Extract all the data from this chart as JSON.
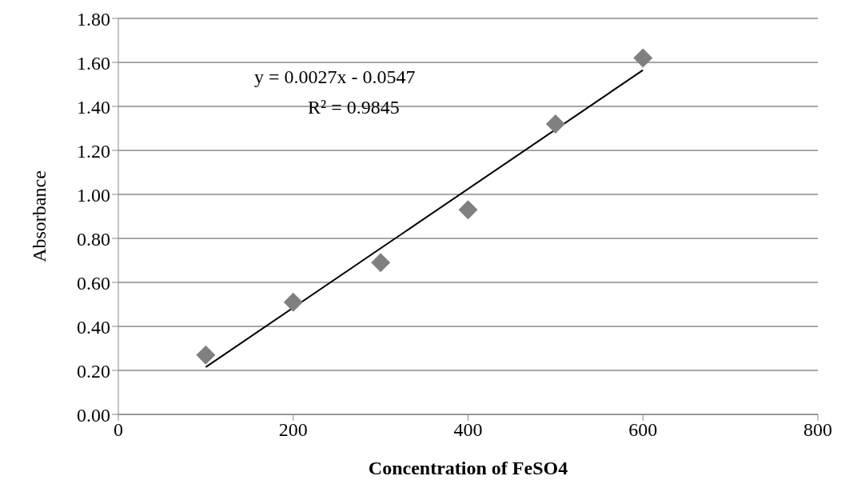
{
  "chart_data": {
    "type": "scatter",
    "xlabel": "Concentration of  FeSO4",
    "ylabel": "Absorbance",
    "x": [
      100,
      200,
      300,
      400,
      500,
      600
    ],
    "series": [
      {
        "color": "#808080",
        "marker": "diamond",
        "values": [
          0.27,
          0.51,
          0.69,
          0.93,
          1.32,
          1.62
        ]
      },
      {
        "type": "line",
        "color": "#000000",
        "marker": "none",
        "x": [
          100,
          600
        ],
        "values": [
          0.215,
          1.565
        ]
      }
    ],
    "annotations": [
      "y = 0.0027x - 0.0547",
      "R² = 0.9845"
    ],
    "xlim": [
      0,
      800
    ],
    "xticks": [
      0,
      200,
      400,
      600,
      800
    ],
    "ylim": [
      0,
      1.8
    ],
    "yticks": [
      {
        "value": 0,
        "label": "0.00"
      },
      {
        "value": 0.2,
        "label": "0.20"
      },
      {
        "value": 0.4,
        "label": "0.40"
      },
      {
        "value": 0.6,
        "label": "0.60"
      },
      {
        "value": 0.8,
        "label": "0.80"
      },
      {
        "value": 1,
        "label": "1.00"
      },
      {
        "value": 1.2,
        "label": "1.20"
      },
      {
        "value": 1.4,
        "label": "1.40"
      },
      {
        "value": 1.6,
        "label": "1.60"
      },
      {
        "value": 1.8,
        "label": "1.80"
      }
    ],
    "grid": "y"
  }
}
